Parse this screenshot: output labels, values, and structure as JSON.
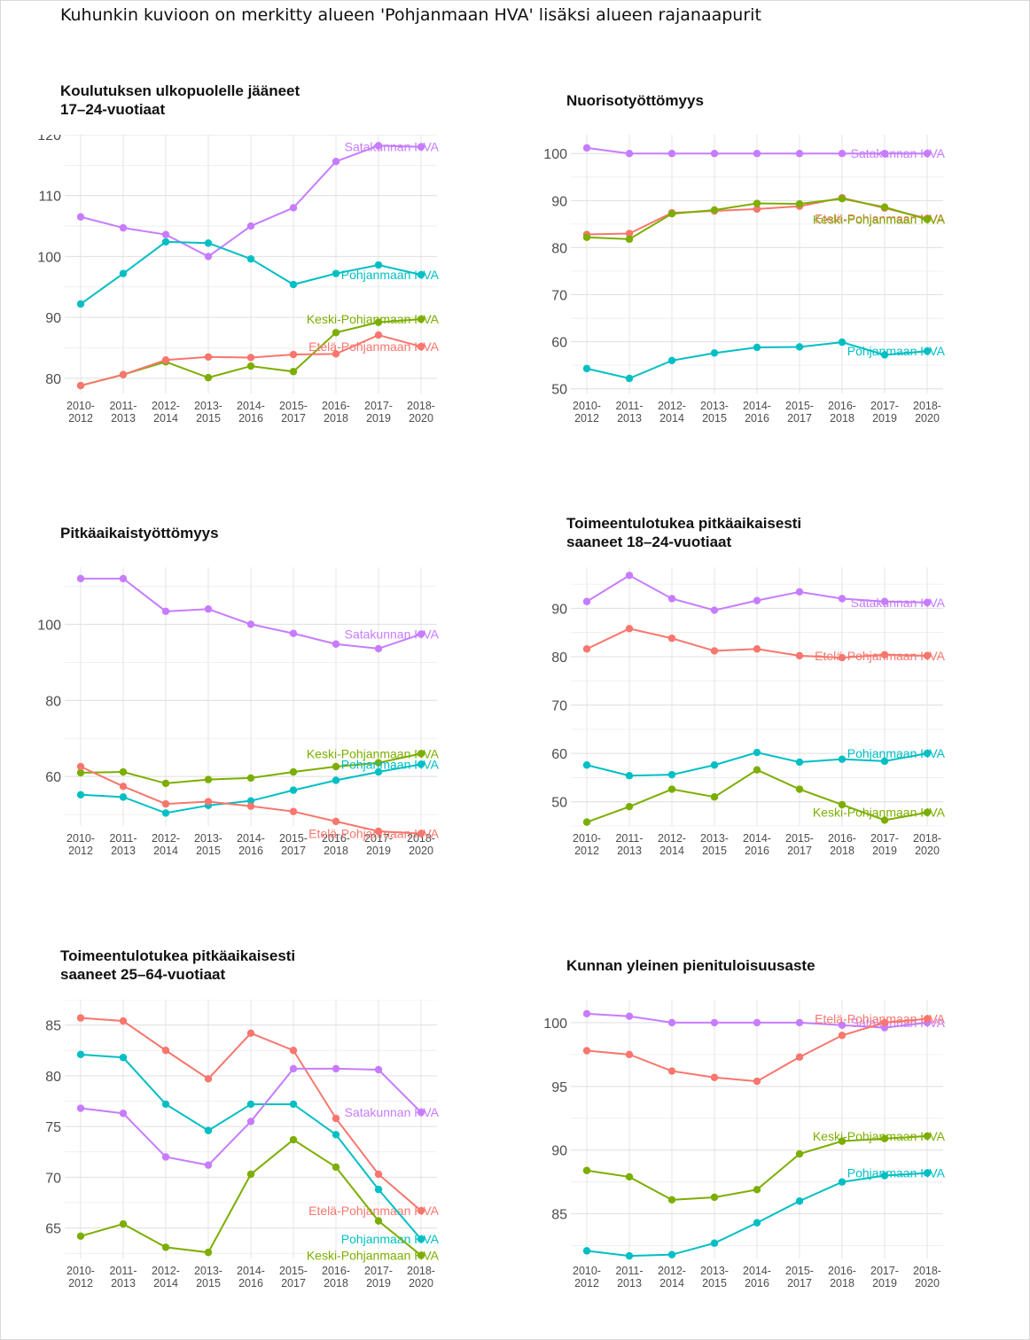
{
  "main_title": "Kuhunkin kuvioon on merkitty alueen 'Pohjanmaan HVA' lisäksi alueen rajanaapurit",
  "colors": {
    "Etelä-Pohjanmaan HVA": "#F8766D",
    "Keski-Pohjanmaan HVA": "#7CAE00",
    "Pohjanmaan HVA": "#00BFC4",
    "Satakunnan HVA": "#C77CFF"
  },
  "chart_data": [
    {
      "type": "line",
      "title_lines": [
        "Koulutuksen ulkopuolelle jääneet",
        "17–24-vuotiaat"
      ],
      "categories": [
        "2010-\n2012",
        "2011-\n2013",
        "2012-\n2014",
        "2013-\n2015",
        "2014-\n2016",
        "2015-\n2017",
        "2016-\n2018",
        "2017-\n2019",
        "2018-\n2020"
      ],
      "ylim": [
        77.5,
        120
      ],
      "yticks": [
        80,
        90,
        100,
        110,
        120
      ],
      "series": [
        {
          "name": "Satakunnan HVA",
          "label": "Satakunnan HVA",
          "values": [
            106.5,
            104.7,
            103.6,
            100.0,
            105.0,
            108.0,
            115.6,
            118.2,
            118.0
          ]
        },
        {
          "name": "Pohjanmaan HVA",
          "label": "Pohjanmaan HVA",
          "values": [
            92.2,
            97.2,
            102.4,
            102.2,
            99.6,
            95.4,
            97.2,
            98.6,
            97.0
          ]
        },
        {
          "name": "Keski-Pohjanmaan HVA",
          "label": "Keski-Pohjanmaan HVA",
          "values": [
            78.8,
            80.6,
            82.7,
            80.1,
            82.0,
            81.1,
            87.5,
            89.2,
            89.7
          ]
        },
        {
          "name": "Etelä-Pohjanmaan HVA",
          "label": "Etelä-Pohjanmaan HVA",
          "values": [
            78.8,
            80.6,
            83.0,
            83.5,
            83.4,
            83.9,
            84.0,
            87.1,
            85.2
          ]
        }
      ]
    },
    {
      "type": "line",
      "title_lines": [
        "Nuorisotyöttömyys"
      ],
      "categories": [
        "2010-\n2012",
        "2011-\n2013",
        "2012-\n2014",
        "2013-\n2015",
        "2014-\n2016",
        "2015-\n2017",
        "2016-\n2018",
        "2017-\n2019",
        "2018-\n2020"
      ],
      "ylim": [
        49,
        104
      ],
      "yticks": [
        50,
        60,
        70,
        80,
        90,
        100
      ],
      "series": [
        {
          "name": "Satakunnan HVA",
          "label": "Satakunnan HVA",
          "values": [
            101.2,
            100.0,
            100.0,
            100.0,
            100.0,
            100.0,
            100.0,
            100.0,
            100.0
          ]
        },
        {
          "name": "Etelä-Pohjanmaan HVA",
          "label": "Etelä-Pohjanmaan HVA",
          "values": [
            82.8,
            83.0,
            87.4,
            87.8,
            88.2,
            88.8,
            90.6,
            88.4,
            86.2
          ]
        },
        {
          "name": "Keski-Pohjanmaan HVA",
          "label": "Keski-Pohjanmaan HVA",
          "values": [
            82.2,
            81.8,
            87.2,
            88.0,
            89.4,
            89.3,
            90.4,
            88.6,
            86.0
          ]
        },
        {
          "name": "Pohjanmaan HVA",
          "label": "Pohjanmaan HVA",
          "values": [
            54.3,
            52.2,
            56.0,
            57.6,
            58.8,
            58.9,
            59.9,
            57.2,
            58.0
          ]
        }
      ]
    },
    {
      "type": "line",
      "title_lines": [
        "Pitkäaikaistyöttömyys"
      ],
      "categories": [
        "2010-\n2012",
        "2011-\n2013",
        "2012-\n2014",
        "2013-\n2015",
        "2014-\n2016",
        "2015-\n2017",
        "2016-\n2018",
        "2017-\n2019",
        "2018-\n2020"
      ],
      "ylim": [
        47,
        115
      ],
      "yticks": [
        60,
        80,
        100
      ],
      "series": [
        {
          "name": "Satakunnan HVA",
          "label": "Satakunnan HVA",
          "values": [
            112.0,
            112.0,
            103.4,
            104.0,
            100.0,
            97.6,
            94.8,
            93.6,
            97.4
          ]
        },
        {
          "name": "Keski-Pohjanmaan HVA",
          "label": "Keski-Pohjanmaan HVA",
          "values": [
            61.0,
            61.2,
            58.2,
            59.2,
            59.6,
            61.2,
            62.6,
            63.6,
            66.0
          ]
        },
        {
          "name": "Pohjanmaan HVA",
          "label": "Pohjanmaan HVA",
          "values": [
            55.2,
            54.6,
            50.4,
            52.4,
            53.6,
            56.4,
            59.0,
            61.2,
            63.2
          ]
        },
        {
          "name": "Etelä-Pohjanmaan HVA",
          "label": "Etelä-Pohjanmaan HVA",
          "values": [
            62.6,
            57.4,
            52.8,
            53.4,
            52.2,
            50.8,
            48.2,
            45.6,
            45.0
          ]
        }
      ]
    },
    {
      "type": "line",
      "title_lines": [
        "Toimeentulotukea pitkäaikaisesti",
        "saaneet 18–24-vuotiaat"
      ],
      "categories": [
        "2010-\n2012",
        "2011-\n2013",
        "2012-\n2014",
        "2013-\n2015",
        "2014-\n2016",
        "2015-\n2017",
        "2016-\n2018",
        "2017-\n2019",
        "2018-\n2020"
      ],
      "ylim": [
        45,
        98.5
      ],
      "yticks": [
        50,
        60,
        70,
        80,
        90
      ],
      "series": [
        {
          "name": "Satakunnan HVA",
          "label": "Satakunnan HVA",
          "values": [
            91.4,
            96.8,
            92.0,
            89.6,
            91.6,
            93.4,
            92.0,
            91.4,
            91.2
          ]
        },
        {
          "name": "Etelä-Pohjanmaan HVA",
          "label": "Etelä-Pohjanmaan HVA",
          "values": [
            81.6,
            85.8,
            83.8,
            81.2,
            81.6,
            80.2,
            79.8,
            80.4,
            80.2
          ]
        },
        {
          "name": "Pohjanmaan HVA",
          "label": "Pohjanmaan HVA",
          "values": [
            57.6,
            55.4,
            55.6,
            57.6,
            60.2,
            58.2,
            58.8,
            58.4,
            60.0
          ]
        },
        {
          "name": "Keski-Pohjanmaan HVA",
          "label": "Keski-Pohjanmaan HVA",
          "values": [
            45.8,
            49.0,
            52.6,
            51.0,
            56.6,
            52.6,
            49.4,
            46.2,
            47.8
          ]
        }
      ]
    },
    {
      "type": "line",
      "title_lines": [
        "Toimeentulotukea pitkäaikaisesti",
        "saaneet 25–64-vuotiaat"
      ],
      "categories": [
        "2010-\n2012",
        "2011-\n2013",
        "2012-\n2014",
        "2013-\n2015",
        "2014-\n2016",
        "2015-\n2017",
        "2016-\n2018",
        "2017-\n2019",
        "2018-\n2020"
      ],
      "ylim": [
        62,
        87.5
      ],
      "yticks": [
        65,
        70,
        75,
        80,
        85
      ],
      "series": [
        {
          "name": "Etelä-Pohjanmaan HVA",
          "label": "Etelä-Pohjanmaan HVA",
          "values": [
            85.7,
            85.4,
            82.5,
            79.7,
            84.2,
            82.5,
            75.8,
            70.3,
            66.7
          ]
        },
        {
          "name": "Pohjanmaan HVA",
          "label": "Pohjanmaan HVA",
          "values": [
            82.1,
            81.8,
            77.2,
            74.6,
            77.2,
            77.2,
            74.2,
            68.8,
            63.9
          ]
        },
        {
          "name": "Satakunnan HVA",
          "label": "Satakunnan HVA",
          "values": [
            76.8,
            76.3,
            72.0,
            71.2,
            75.5,
            80.7,
            80.7,
            80.6,
            76.4
          ]
        },
        {
          "name": "Keski-Pohjanmaan HVA",
          "label": "Keski-Pohjanmaan HVA",
          "values": [
            64.2,
            65.4,
            63.1,
            62.6,
            70.3,
            73.7,
            71.0,
            65.7,
            62.3
          ]
        }
      ]
    },
    {
      "type": "line",
      "title_lines": [
        "Kunnan yleinen pienituloisuusaste"
      ],
      "categories": [
        "2010-\n2012",
        "2011-\n2013",
        "2012-\n2014",
        "2013-\n2015",
        "2014-\n2016",
        "2015-\n2017",
        "2016-\n2018",
        "2017-\n2019",
        "2018-\n2020"
      ],
      "ylim": [
        81.5,
        101.8
      ],
      "yticks": [
        85,
        90,
        95,
        100
      ],
      "series": [
        {
          "name": "Satakunnan HVA",
          "label": "Satakunnan HVA",
          "values": [
            100.7,
            100.5,
            100.0,
            100.0,
            100.0,
            100.0,
            99.8,
            99.6,
            100.0
          ]
        },
        {
          "name": "Etelä-Pohjanmaan HVA",
          "label": "Etelä-Pohjanmaan HVA",
          "values": [
            97.8,
            97.5,
            96.2,
            95.7,
            95.4,
            97.3,
            99.0,
            100.0,
            100.3
          ]
        },
        {
          "name": "Keski-Pohjanmaan HVA",
          "label": "Keski-Pohjanmaan HVA",
          "values": [
            88.4,
            87.9,
            86.1,
            86.3,
            86.9,
            89.7,
            90.7,
            90.9,
            91.1
          ]
        },
        {
          "name": "Pohjanmaan HVA",
          "label": "Pohjanmaan HVA",
          "values": [
            82.1,
            81.7,
            81.8,
            82.7,
            84.3,
            86.0,
            87.5,
            88.0,
            88.2
          ]
        }
      ]
    }
  ]
}
